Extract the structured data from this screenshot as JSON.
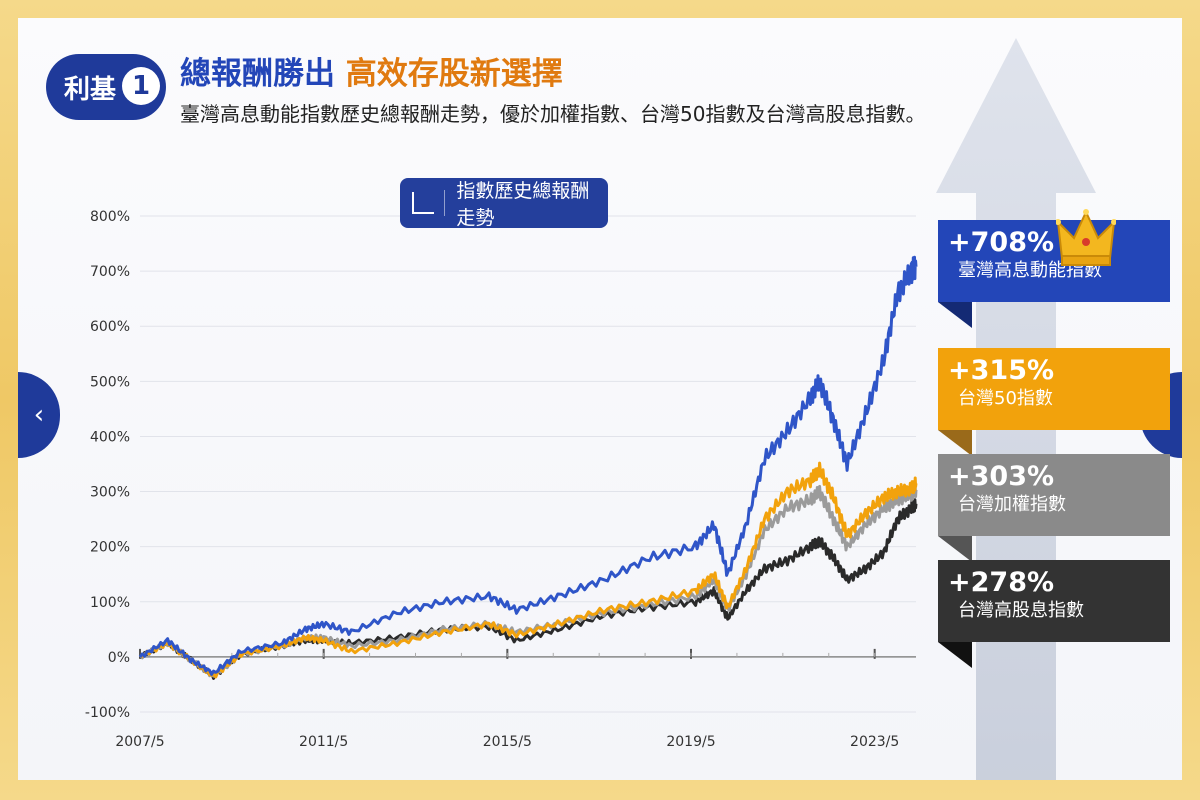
{
  "header": {
    "badge_text": "利基",
    "badge_number": "1",
    "headline_blue": "總報酬勝出",
    "headline_orange": "高效存股新選擇",
    "subtitle": "臺灣高息動能指數歷史總報酬走勢，優於加權指數、台灣50指數及台灣高股息指數。"
  },
  "chart_label": "指數歷史總報酬走勢",
  "nav": {
    "prev": "‹",
    "next": "›"
  },
  "colors": {
    "blue": "#2f55c8",
    "orange": "#f2a20c",
    "gray": "#9b9b9b",
    "black": "#2a2a2a",
    "brand_navy": "#1f3a9a"
  },
  "tags": [
    {
      "pct": "+708%",
      "name": "臺灣高息動能指數",
      "color": "#2346b8"
    },
    {
      "pct": "+315%",
      "name": "台灣50指數",
      "color": "#f2a20c"
    },
    {
      "pct": "+303%",
      "name": "台灣加權指數",
      "color": "#8a8a8a"
    },
    {
      "pct": "+278%",
      "name": "台灣高股息指數",
      "color": "#333333"
    }
  ],
  "chart_data": {
    "type": "line",
    "title": "指數歷史總報酬走勢",
    "ylim": [
      -100,
      800
    ],
    "y_ticks": [
      "800%",
      "700%",
      "600%",
      "500%",
      "400%",
      "300%",
      "200%",
      "100%",
      "0%",
      "-100%"
    ],
    "x_ticks": [
      "2007/5",
      "2011/5",
      "2015/5",
      "2019/5",
      "2023/5"
    ],
    "grid": true,
    "series": [
      {
        "name": "臺灣高息動能指數",
        "color": "#2f55c8",
        "final": "+708%",
        "points": [
          [
            2007.4,
            0
          ],
          [
            2008.0,
            30
          ],
          [
            2008.5,
            -5
          ],
          [
            2009.0,
            -30
          ],
          [
            2009.6,
            10
          ],
          [
            2010.5,
            25
          ],
          [
            2011.0,
            50
          ],
          [
            2011.4,
            60
          ],
          [
            2012.0,
            45
          ],
          [
            2013.0,
            80
          ],
          [
            2014.0,
            100
          ],
          [
            2015.0,
            110
          ],
          [
            2015.6,
            85
          ],
          [
            2016.5,
            110
          ],
          [
            2017.5,
            140
          ],
          [
            2018.5,
            180
          ],
          [
            2019.5,
            200
          ],
          [
            2019.9,
            240
          ],
          [
            2020.2,
            150
          ],
          [
            2020.6,
            240
          ],
          [
            2021.0,
            360
          ],
          [
            2021.5,
            410
          ],
          [
            2022.0,
            470
          ],
          [
            2022.2,
            500
          ],
          [
            2022.5,
            430
          ],
          [
            2022.8,
            350
          ],
          [
            2023.2,
            440
          ],
          [
            2023.6,
            540
          ],
          [
            2023.9,
            660
          ],
          [
            2024.2,
            700
          ],
          [
            2024.3,
            708
          ]
        ]
      },
      {
        "name": "台灣50指數",
        "color": "#f2a20c",
        "final": "+315%",
        "points": [
          [
            2007.4,
            0
          ],
          [
            2008.0,
            25
          ],
          [
            2008.5,
            -5
          ],
          [
            2009.0,
            -35
          ],
          [
            2009.6,
            5
          ],
          [
            2010.5,
            20
          ],
          [
            2011.0,
            35
          ],
          [
            2011.4,
            30
          ],
          [
            2012.0,
            10
          ],
          [
            2013.0,
            25
          ],
          [
            2014.0,
            45
          ],
          [
            2015.0,
            60
          ],
          [
            2015.6,
            40
          ],
          [
            2016.5,
            60
          ],
          [
            2017.5,
            85
          ],
          [
            2018.5,
            100
          ],
          [
            2019.5,
            120
          ],
          [
            2019.9,
            150
          ],
          [
            2020.2,
            90
          ],
          [
            2020.6,
            160
          ],
          [
            2021.0,
            250
          ],
          [
            2021.5,
            300
          ],
          [
            2022.0,
            320
          ],
          [
            2022.2,
            340
          ],
          [
            2022.5,
            290
          ],
          [
            2022.8,
            220
          ],
          [
            2023.2,
            260
          ],
          [
            2023.6,
            290
          ],
          [
            2023.9,
            300
          ],
          [
            2024.2,
            305
          ],
          [
            2024.3,
            315
          ]
        ]
      },
      {
        "name": "台灣加權指數",
        "color": "#9b9b9b",
        "final": "+303%",
        "points": [
          [
            2007.4,
            0
          ],
          [
            2008.0,
            25
          ],
          [
            2008.5,
            -5
          ],
          [
            2009.0,
            -35
          ],
          [
            2009.6,
            5
          ],
          [
            2010.5,
            20
          ],
          [
            2011.0,
            35
          ],
          [
            2011.4,
            35
          ],
          [
            2012.0,
            20
          ],
          [
            2013.0,
            30
          ],
          [
            2014.0,
            50
          ],
          [
            2015.0,
            60
          ],
          [
            2015.6,
            45
          ],
          [
            2016.5,
            60
          ],
          [
            2017.5,
            80
          ],
          [
            2018.5,
            95
          ],
          [
            2019.5,
            110
          ],
          [
            2019.9,
            140
          ],
          [
            2020.2,
            85
          ],
          [
            2020.6,
            150
          ],
          [
            2021.0,
            230
          ],
          [
            2021.5,
            270
          ],
          [
            2022.0,
            285
          ],
          [
            2022.2,
            300
          ],
          [
            2022.5,
            250
          ],
          [
            2022.8,
            200
          ],
          [
            2023.2,
            240
          ],
          [
            2023.6,
            270
          ],
          [
            2023.9,
            285
          ],
          [
            2024.2,
            295
          ],
          [
            2024.3,
            303
          ]
        ]
      },
      {
        "name": "台灣高股息指數",
        "color": "#2a2a2a",
        "final": "+278%",
        "points": [
          [
            2007.4,
            0
          ],
          [
            2008.0,
            25
          ],
          [
            2008.5,
            -5
          ],
          [
            2009.0,
            -35
          ],
          [
            2009.6,
            5
          ],
          [
            2010.5,
            20
          ],
          [
            2011.0,
            30
          ],
          [
            2011.4,
            30
          ],
          [
            2012.0,
            25
          ],
          [
            2013.0,
            35
          ],
          [
            2014.0,
            50
          ],
          [
            2015.0,
            55
          ],
          [
            2015.6,
            30
          ],
          [
            2016.5,
            50
          ],
          [
            2017.5,
            75
          ],
          [
            2018.5,
            90
          ],
          [
            2019.5,
            100
          ],
          [
            2019.9,
            120
          ],
          [
            2020.2,
            70
          ],
          [
            2020.6,
            120
          ],
          [
            2021.0,
            160
          ],
          [
            2021.5,
            175
          ],
          [
            2022.0,
            200
          ],
          [
            2022.2,
            210
          ],
          [
            2022.5,
            180
          ],
          [
            2022.8,
            140
          ],
          [
            2023.2,
            160
          ],
          [
            2023.6,
            190
          ],
          [
            2023.9,
            250
          ],
          [
            2024.2,
            270
          ],
          [
            2024.3,
            278
          ]
        ]
      }
    ]
  }
}
